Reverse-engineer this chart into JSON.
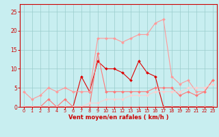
{
  "x": [
    0,
    1,
    2,
    3,
    4,
    5,
    6,
    7,
    8,
    9,
    10,
    11,
    12,
    13,
    14,
    15,
    16,
    17,
    18,
    19,
    20,
    21,
    22,
    23
  ],
  "series": [
    {
      "name": "dark_red_spiky",
      "color": "#dd0000",
      "values": [
        0,
        0,
        0,
        0,
        0,
        0,
        0,
        8,
        4,
        12,
        10,
        10,
        9,
        7,
        12,
        9,
        8,
        0,
        0,
        0,
        0,
        0,
        0,
        0
      ],
      "markersize": 2,
      "linewidth": 0.8
    },
    {
      "name": "light_pink_high",
      "color": "#ff9999",
      "values": [
        4,
        2,
        3,
        5,
        4,
        5,
        4,
        4,
        4,
        18,
        18,
        18,
        17,
        18,
        19,
        19,
        22,
        23,
        8,
        6,
        7,
        4,
        4,
        7
      ],
      "markersize": 2,
      "linewidth": 0.8
    },
    {
      "name": "medium_pink_mid",
      "color": "#ff7777",
      "values": [
        0,
        0,
        0,
        2,
        0,
        2,
        0,
        0,
        0,
        14,
        4,
        4,
        4,
        4,
        4,
        4,
        5,
        5,
        5,
        3,
        4,
        3,
        4,
        7
      ],
      "markersize": 2,
      "linewidth": 0.8
    },
    {
      "name": "flat_zero",
      "color": "#ffbbbb",
      "values": [
        0,
        0,
        0,
        0,
        0,
        0,
        0,
        0,
        0,
        0,
        0,
        0,
        0,
        0,
        0,
        0,
        0,
        0,
        0,
        0,
        0,
        0,
        0,
        0
      ],
      "markersize": 2,
      "linewidth": 0.7
    },
    {
      "name": "slow_rising",
      "color": "#ffcccc",
      "values": [
        0,
        0,
        0,
        0,
        0,
        0,
        0,
        0,
        1,
        1,
        2,
        2,
        2,
        3,
        3,
        3,
        4,
        4,
        4,
        4,
        5,
        5,
        5,
        6
      ],
      "markersize": 2,
      "linewidth": 0.7
    }
  ],
  "xlabel": "Vent moyen/en rafales ( km/h )",
  "xlim": [
    -0.5,
    23.5
  ],
  "ylim": [
    0,
    27
  ],
  "yticks": [
    0,
    5,
    10,
    15,
    20,
    25
  ],
  "xticks": [
    0,
    1,
    2,
    3,
    4,
    5,
    6,
    7,
    8,
    9,
    10,
    11,
    12,
    13,
    14,
    15,
    16,
    17,
    18,
    19,
    20,
    21,
    22,
    23
  ],
  "bg_color": "#c8eef0",
  "grid_color": "#99cccc",
  "tick_color": "#cc0000",
  "label_color": "#cc0000",
  "axis_color": "#cc0000",
  "xlabel_fontsize": 6.0,
  "xlabel_fontweight": "bold",
  "ytick_fontsize": 5.5,
  "xtick_fontsize": 4.8
}
